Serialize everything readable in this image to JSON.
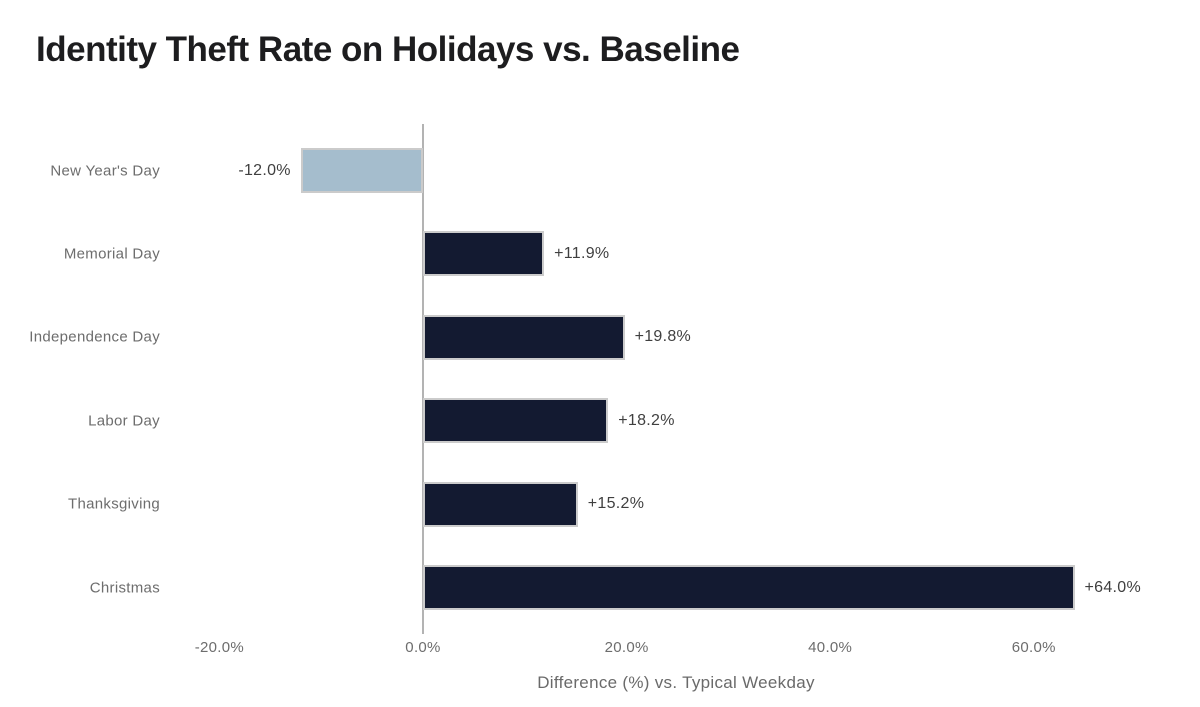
{
  "header": {
    "title": "Identity Theft Rate on Holidays vs. Baseline"
  },
  "chart_data": {
    "type": "bar",
    "orientation": "horizontal",
    "title": "Identity Theft Rate on Holidays vs. Baseline",
    "categories": [
      "New Year's Day",
      "Memorial Day",
      "Independence Day",
      "Labor Day",
      "Thanksgiving",
      "Christmas"
    ],
    "values": [
      -12.0,
      11.9,
      19.8,
      18.2,
      15.2,
      64.0
    ],
    "value_labels": [
      "-12.0%",
      "+11.9%",
      "+19.8%",
      "+18.2%",
      "+15.2%",
      "+64.0%"
    ],
    "xlabel": "Difference (%) vs. Typical Weekday",
    "ylabel": "",
    "xlim": [
      -25,
      70
    ],
    "x_ticks": [
      -20,
      0,
      20,
      40,
      60
    ],
    "x_tick_labels": [
      "-20.0%",
      "0.0%",
      "20.0%",
      "40.0%",
      "60.0%"
    ],
    "grid": false,
    "legend": false,
    "zero_line": true,
    "colors": {
      "positive_bar": "#131a31",
      "negative_bar": "#a5bdcd",
      "bar_border": "#cbcbcb",
      "zero_line": "#b3b3b3",
      "title_text": "#1d1d1f",
      "category_label": "#6d6d6d",
      "value_label": "#3f3f3f",
      "tick_label": "#6d6d6d",
      "axis_label": "#6a6a6a"
    }
  }
}
